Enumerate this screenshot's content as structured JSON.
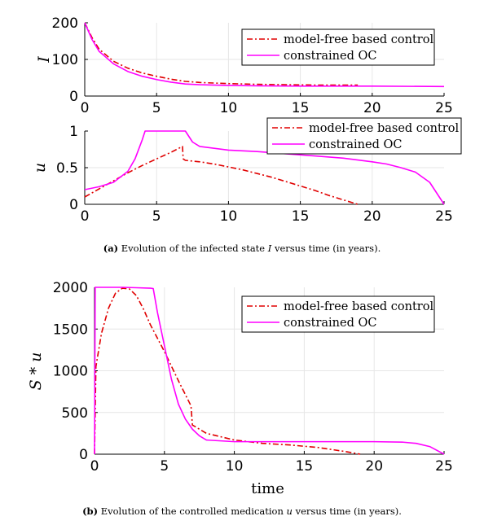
{
  "chart_data": [
    {
      "type": "line",
      "panel": "top",
      "title": "",
      "xlabel": "",
      "ylabel": "I",
      "xlim": [
        0,
        25
      ],
      "ylim": [
        0,
        200
      ],
      "xticks": [
        0,
        5,
        10,
        15,
        20,
        25
      ],
      "yticks": [
        0,
        100,
        200
      ],
      "grid": true,
      "legend": "top-right",
      "series": [
        {
          "name": "model-free based control",
          "color": "#e00000",
          "style": "dashdot",
          "x": [
            0,
            0.5,
            1,
            2,
            3,
            4,
            5,
            6,
            7,
            8,
            10,
            12,
            14,
            16,
            18,
            19
          ],
          "y": [
            200,
            160,
            128,
            95,
            76,
            63,
            54,
            46,
            40,
            37,
            34,
            32,
            31,
            30,
            30,
            30
          ]
        },
        {
          "name": "constrained OC",
          "color": "#ff00ff",
          "style": "solid",
          "x": [
            0,
            0.5,
            1,
            2,
            3,
            4,
            5,
            6,
            7,
            8,
            10,
            12,
            15,
            20,
            25
          ],
          "y": [
            200,
            155,
            122,
            88,
            67,
            54,
            45,
            38,
            33,
            31,
            29,
            28,
            27,
            27,
            26
          ]
        }
      ]
    },
    {
      "type": "line",
      "panel": "middle",
      "title": "",
      "xlabel": "",
      "ylabel": "u",
      "xlim": [
        0,
        25
      ],
      "ylim": [
        0,
        1
      ],
      "xticks": [
        0,
        5,
        10,
        15,
        20,
        25
      ],
      "yticks": [
        0,
        0.5,
        1
      ],
      "grid": true,
      "legend": "top-right",
      "series": [
        {
          "name": "model-free based control",
          "color": "#e00000",
          "style": "dashdot",
          "x": [
            0,
            1,
            2,
            3,
            4,
            5,
            6,
            6.8,
            6.85,
            7,
            8,
            9,
            10,
            11,
            12,
            13,
            14,
            15,
            16,
            17,
            18,
            19
          ],
          "y": [
            0.1,
            0.21,
            0.32,
            0.43,
            0.53,
            0.62,
            0.71,
            0.79,
            0.62,
            0.6,
            0.58,
            0.55,
            0.51,
            0.47,
            0.42,
            0.37,
            0.31,
            0.25,
            0.19,
            0.12,
            0.06,
            0.0
          ]
        },
        {
          "name": "constrained OC",
          "color": "#ff00ff",
          "style": "solid",
          "x": [
            0,
            1,
            2,
            3,
            3.5,
            4,
            4.2,
            5,
            6,
            7,
            7.5,
            8,
            10,
            12,
            14,
            16,
            18,
            20,
            21,
            22,
            23,
            24,
            24.5,
            25
          ],
          "y": [
            0.2,
            0.24,
            0.3,
            0.45,
            0.62,
            0.88,
            1.0,
            1.0,
            1.0,
            1.0,
            0.85,
            0.79,
            0.74,
            0.72,
            0.69,
            0.66,
            0.63,
            0.58,
            0.55,
            0.5,
            0.44,
            0.3,
            0.15,
            0.0
          ]
        }
      ]
    },
    {
      "type": "line",
      "panel": "bottom",
      "title": "",
      "xlabel": "time",
      "ylabel": "S * u",
      "xlim": [
        0,
        25
      ],
      "ylim": [
        0,
        2000
      ],
      "xticks": [
        0,
        5,
        10,
        15,
        20,
        25
      ],
      "yticks": [
        0,
        500,
        1000,
        1500,
        2000
      ],
      "grid": true,
      "legend": "top-right",
      "series": [
        {
          "name": "model-free based control",
          "color": "#e00000",
          "style": "dashdot",
          "x": [
            0,
            0.1,
            0.5,
            1,
            1.5,
            2,
            2.5,
            3,
            3.5,
            4,
            5,
            6,
            6.9,
            7,
            8,
            10,
            12,
            14,
            16,
            18,
            19
          ],
          "y": [
            0,
            1050,
            1450,
            1750,
            1930,
            1990,
            1980,
            1900,
            1740,
            1550,
            1230,
            880,
            580,
            350,
            250,
            170,
            130,
            110,
            80,
            30,
            0
          ]
        },
        {
          "name": "constrained OC",
          "color": "#ff00ff",
          "style": "solid",
          "x": [
            0,
            0.05,
            0.3,
            1,
            2,
            3,
            4,
            4.2,
            4.5,
            5,
            5.5,
            6,
            6.5,
            7,
            7.5,
            8,
            10,
            15,
            20,
            22,
            23,
            24,
            25
          ],
          "y": [
            0,
            2000,
            2000,
            2000,
            2000,
            1995,
            1990,
            1985,
            1700,
            1300,
            900,
            600,
            420,
            300,
            220,
            170,
            150,
            150,
            150,
            145,
            130,
            90,
            0
          ]
        }
      ]
    }
  ],
  "captions": {
    "a": {
      "tag": "(a)",
      "text_before": "Evolution of the infected state ",
      "symbol": "I",
      "text_after": " versus time (in years)."
    },
    "b": {
      "tag": "(b)",
      "text_before": "Evolution of the controlled medication ",
      "symbol": "u",
      "text_after": " versus time (in years)."
    }
  }
}
